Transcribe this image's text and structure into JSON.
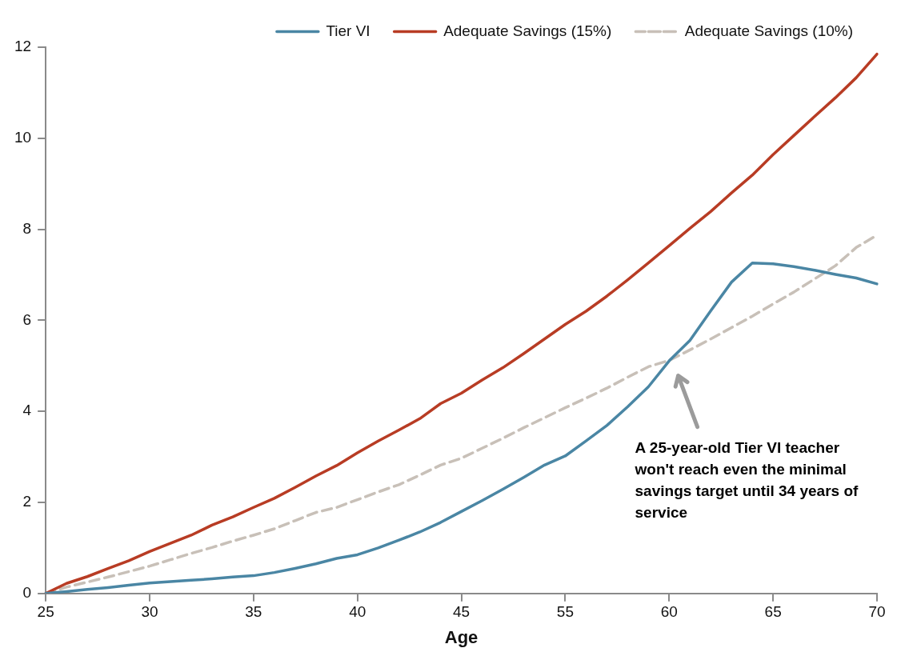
{
  "chart_data": {
    "type": "line",
    "xlabel": "Age",
    "categories": [
      "25",
      null,
      null,
      null,
      null,
      "30",
      null,
      null,
      null,
      null,
      "35",
      null,
      null,
      null,
      null,
      "40",
      null,
      null,
      null,
      null,
      "45",
      null,
      null,
      null,
      null,
      "55",
      null,
      null,
      null,
      null,
      "60",
      null,
      null,
      null,
      null,
      "65",
      null,
      null,
      null,
      null,
      "70"
    ],
    "series": [
      {
        "name": "Tier VI",
        "color": "#4a86a4",
        "line_style": "solid",
        "values": [
          0,
          0.04,
          0.09,
          0.13,
          0.18,
          0.23,
          0.26,
          0.29,
          0.32,
          0.36,
          0.39,
          0.46,
          0.55,
          0.65,
          0.77,
          0.85,
          1.0,
          1.17,
          1.35,
          1.56,
          1.8,
          2.04,
          2.29,
          2.55,
          2.82,
          3.02,
          3.35,
          3.69,
          4.1,
          4.54,
          5.11,
          5.56,
          6.21,
          6.84,
          7.26,
          7.24,
          7.18,
          7.1,
          7.01,
          6.93,
          6.8
        ]
      },
      {
        "name": "Adequate Savings (15%)",
        "color": "#b83c24",
        "line_style": "solid",
        "values": [
          0,
          0.22,
          0.37,
          0.55,
          0.72,
          0.92,
          1.1,
          1.28,
          1.5,
          1.68,
          1.89,
          2.09,
          2.33,
          2.58,
          2.81,
          3.09,
          3.35,
          3.59,
          3.84,
          4.17,
          4.4,
          4.69,
          4.96,
          5.27,
          5.59,
          5.91,
          6.2,
          6.53,
          6.89,
          7.26,
          7.64,
          8.02,
          8.39,
          8.8,
          9.19,
          9.64,
          10.06,
          10.48,
          10.89,
          11.33,
          11.85
        ]
      },
      {
        "name": "Adequate Savings (10%)",
        "color": "#c8c0b8",
        "line_style": "dashed",
        "values": [
          0,
          0.14,
          0.25,
          0.36,
          0.48,
          0.6,
          0.74,
          0.88,
          1.01,
          1.15,
          1.28,
          1.42,
          1.6,
          1.78,
          1.89,
          2.06,
          2.23,
          2.39,
          2.6,
          2.82,
          2.97,
          3.19,
          3.41,
          3.64,
          3.86,
          4.08,
          4.29,
          4.51,
          4.75,
          4.98,
          5.12,
          5.35,
          5.59,
          5.84,
          6.09,
          6.36,
          6.62,
          6.91,
          7.2,
          7.6,
          7.87
        ]
      }
    ],
    "ylim": [
      0,
      12
    ],
    "yticks": [
      0,
      2,
      4,
      6,
      8,
      10,
      12
    ],
    "grid": false,
    "legend": "top right",
    "marker": "none",
    "annotations": [
      "A 25-year-old Tier VI teacher won't reach even the minimal savings target until 34 years of service"
    ]
  }
}
